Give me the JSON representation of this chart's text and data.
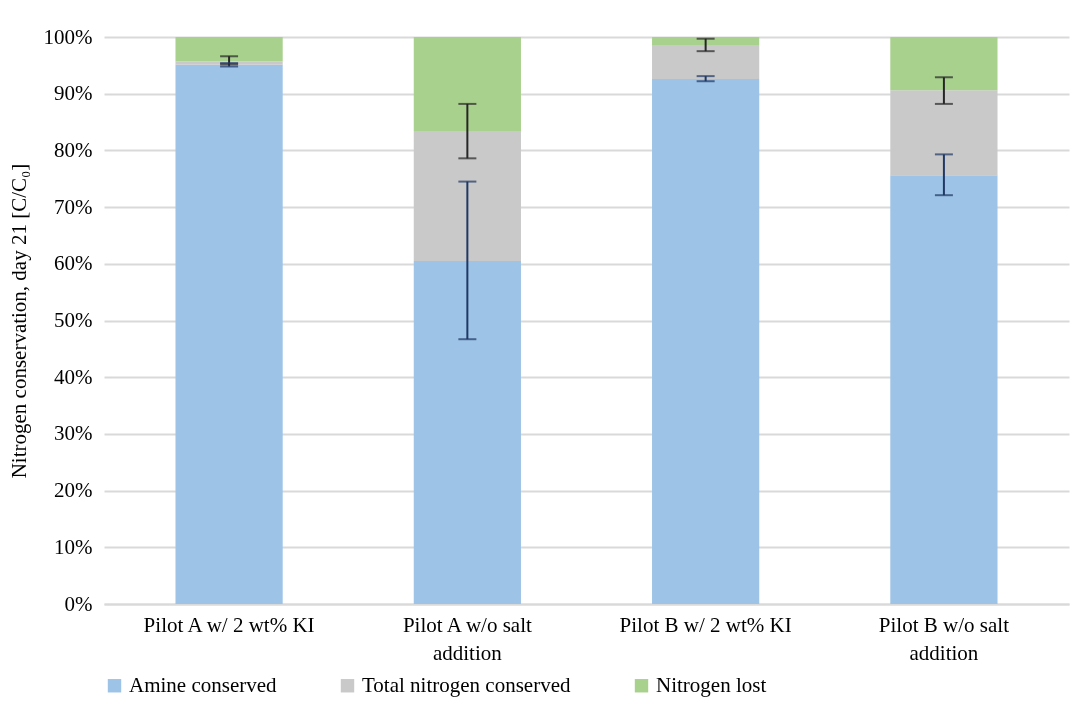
{
  "chart_data": {
    "type": "bar",
    "stacked": true,
    "ylabel": "Nitrogen conservation, day 21 [C/C₀]",
    "categories": [
      "Pilot A w/ 2 wt% KI",
      "Pilot A w/o salt addition",
      "Pilot B w/ 2 wt% KI",
      "Pilot B w/o salt addition"
    ],
    "series": [
      {
        "name": "Amine conserved",
        "color": "#9dc3e6",
        "values": [
          95.1,
          60.5,
          92.6,
          75.6
        ],
        "errors": [
          [
            94.8,
            95.4
          ],
          [
            46.7,
            74.5
          ],
          [
            92.2,
            93.1
          ],
          [
            72.1,
            79.3
          ]
        ]
      },
      {
        "name": "Total nitrogen conserved",
        "color": "#c9c9c9",
        "values": [
          0.6,
          22.9,
          6.0,
          15.0
        ],
        "errors": [
          [
            95.2,
            96.6
          ],
          [
            78.6,
            88.2
          ],
          [
            97.5,
            99.7
          ],
          [
            88.2,
            92.9
          ]
        ]
      },
      {
        "name": "Nitrogen lost",
        "color": "#a9d18e",
        "values": [
          4.3,
          16.6,
          1.4,
          9.4
        ]
      }
    ],
    "ylim": [
      0,
      100
    ],
    "yticks": [
      {
        "value": 0,
        "label": "0%"
      },
      {
        "value": 10,
        "label": "10%"
      },
      {
        "value": 20,
        "label": "20%"
      },
      {
        "value": 30,
        "label": "30%"
      },
      {
        "value": 40,
        "label": "40%"
      },
      {
        "value": 50,
        "label": "50%"
      },
      {
        "value": 60,
        "label": "60%"
      },
      {
        "value": 70,
        "label": "70%"
      },
      {
        "value": 80,
        "label": "80%"
      },
      {
        "value": 90,
        "label": "90%"
      },
      {
        "value": 100,
        "label": "100%"
      }
    ],
    "grid": "y",
    "legend": "bottom"
  }
}
